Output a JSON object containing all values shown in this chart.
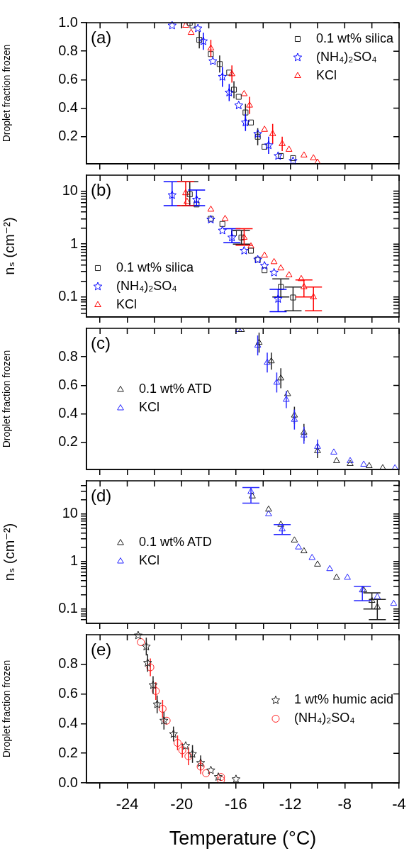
{
  "chart_data": [
    {
      "type": "scatter",
      "ylabel": "Droplet fraction frozen",
      "annotations": [
        "(a)"
      ],
      "xlim": [
        -27,
        -4
      ],
      "xticks": [
        {
          "value": -26,
          "label": null
        },
        -24,
        {
          "value": -22,
          "label": null
        },
        -20,
        {
          "value": -18,
          "label": null
        },
        -16,
        {
          "value": -14,
          "label": null
        },
        -12,
        {
          "value": -10,
          "label": null
        },
        -8,
        {
          "value": -6,
          "label": null
        },
        -4
      ],
      "ylim": [
        0.01,
        1
      ],
      "yticks": [
        0.2,
        0.4,
        0.6,
        0.8,
        {
          "value": 1,
          "label": "1.0"
        }
      ],
      "tick_labels": "y",
      "grid": false,
      "legend": "top right",
      "series": [
        {
          "name": "0.1 wt% silica",
          "color": "#202020",
          "marker": "square",
          "x": [
            -19.4,
            -19.2,
            -18.7,
            -17.85,
            -17.2,
            -16.5,
            -16.15,
            -15.8,
            -15.3,
            -14.9,
            -14.4,
            -13.9,
            -12.7,
            -11.8
          ],
          "values": [
            1.0,
            0.98,
            0.88,
            0.78,
            0.71,
            0.65,
            0.53,
            0.48,
            0.37,
            0.3,
            0.2,
            0.13,
            0.065,
            0.05
          ],
          "errors": [
            null,
            null,
            0.06,
            null,
            0.06,
            null,
            0.06,
            null,
            0.06,
            null,
            0.06,
            null,
            null,
            null
          ]
        },
        {
          "name": "(NH₄)₂SO₄",
          "color": "#0000ff",
          "marker": "star",
          "x": [
            -20.7,
            -18.8,
            -18.4,
            -17.7,
            -17.0,
            -16.5,
            -15.8,
            -15.3,
            -14.4,
            -13.6,
            -12.9,
            -11.8
          ],
          "values": [
            0.98,
            0.96,
            0.87,
            0.73,
            0.62,
            0.51,
            0.42,
            0.3,
            0.22,
            0.14,
            0.065,
            0.03
          ],
          "errors": [
            null,
            null,
            0.06,
            null,
            0.07,
            0.06,
            null,
            0.06,
            null,
            0.06,
            null,
            null
          ]
        },
        {
          "name": "KCl",
          "color": "#ff0000",
          "marker": "triangle",
          "x": [
            -19.7,
            -19.3,
            -17.85,
            -16.3,
            -15.4,
            -15.0,
            -13.9,
            -13.3,
            -12.6,
            -12.1,
            -11.0,
            -10.3,
            -10.0
          ],
          "values": [
            0.98,
            0.93,
            0.82,
            0.64,
            0.5,
            0.42,
            0.25,
            0.22,
            0.15,
            0.11,
            0.07,
            0.05,
            0.02
          ],
          "errors": [
            null,
            null,
            0.06,
            0.06,
            null,
            0.06,
            null,
            0.07,
            0.05,
            null,
            null,
            null,
            null
          ]
        }
      ]
    },
    {
      "type": "scatter",
      "ylabel": "nₛ (cm⁻²)",
      "annotations": [
        "(b)"
      ],
      "log": "y",
      "xlim": [
        -27,
        -4
      ],
      "xticks": [
        {
          "value": -26,
          "label": null
        },
        -24,
        {
          "value": -22,
          "label": null
        },
        -20,
        {
          "value": -18,
          "label": null
        },
        -16,
        {
          "value": -14,
          "label": null
        },
        -12,
        {
          "value": -10,
          "label": null
        },
        -8,
        {
          "value": -6,
          "label": null
        },
        -4
      ],
      "ylim": [
        0.042,
        20
      ],
      "yticks": [
        {
          "value": 0.05,
          "label": null
        },
        {
          "value": 0.06,
          "label": null
        },
        {
          "value": 0.07,
          "label": null
        },
        {
          "value": 0.08,
          "label": null
        },
        {
          "value": 0.09,
          "label": null
        },
        0.1,
        {
          "value": 0.2,
          "label": null
        },
        {
          "value": 0.3,
          "label": null
        },
        {
          "value": 0.4,
          "label": null
        },
        {
          "value": 0.5,
          "label": null
        },
        {
          "value": 0.6,
          "label": null
        },
        {
          "value": 0.7,
          "label": null
        },
        {
          "value": 0.8,
          "label": null
        },
        {
          "value": 0.9,
          "label": null
        },
        1,
        {
          "value": 2,
          "label": null
        },
        {
          "value": 3,
          "label": null
        },
        {
          "value": 4,
          "label": null
        },
        {
          "value": 5,
          "label": null
        },
        {
          "value": 6,
          "label": null
        },
        {
          "value": 7,
          "label": null
        },
        {
          "value": 8,
          "label": null
        },
        {
          "value": 9,
          "label": null
        },
        10
      ],
      "tick_labels": "y",
      "grid": false,
      "legend": "bottom left",
      "series": [
        {
          "name": "0.1 wt% silica",
          "color": "#202020",
          "marker": "square",
          "x": [
            -19.4,
            -18.9,
            -17.85,
            -17.0,
            -16.15,
            -15.6,
            -14.9,
            -14.4,
            -13.9,
            -12.7,
            -11.8
          ],
          "values": [
            8.7,
            5.6,
            3.0,
            2.4,
            1.6,
            1.33,
            0.75,
            0.51,
            0.32,
            0.155,
            0.098
          ],
          "errors": [
            [
              5.3,
              15
            ],
            null,
            null,
            null,
            null,
            [
              1.0,
              1.8
            ],
            null,
            null,
            null,
            [
              0.1,
              0.22
            ],
            [
              0.055,
              0.155
            ]
          ]
        },
        {
          "name": "(NH₄)₂SO₄",
          "color": "#0000ff",
          "marker": "star",
          "x": [
            -20.7,
            -18.9,
            -17.85,
            -17.0,
            -16.3,
            -15.4,
            -14.4,
            -13.9,
            -13.2,
            -12.9
          ],
          "values": [
            8.4,
            6.9,
            2.9,
            1.8,
            1.33,
            0.75,
            0.51,
            0.39,
            0.29,
            0.092
          ],
          "errors": [
            [
              5.3,
              15
            ],
            [
              5.3,
              10.5
            ],
            null,
            null,
            [
              1.06,
              1.95
            ],
            null,
            null,
            null,
            null,
            [
              0.053,
              0.14
            ]
          ]
        },
        {
          "name": "KCl",
          "color": "#ff0000",
          "marker": "triangle",
          "x": [
            -19.7,
            -19.6,
            -17.85,
            -16.8,
            -15.4,
            -14.9,
            -13.9,
            -13.2,
            -12.7,
            -12.1,
            -11.2,
            -11.0,
            -10.3
          ],
          "values": [
            9.2,
            6.3,
            4.5,
            3.0,
            1.33,
            0.91,
            0.61,
            0.46,
            0.35,
            0.26,
            0.22,
            0.155,
            0.1
          ],
          "errors": [
            [
              5.3,
              15
            ],
            null,
            null,
            null,
            [
              0.95,
              1.95
            ],
            null,
            null,
            null,
            null,
            null,
            null,
            [
              0.1,
              0.21
            ],
            [
              0.055,
              0.155
            ]
          ]
        }
      ]
    },
    {
      "type": "scatter",
      "ylabel": "Droplet fraction frozen",
      "annotations": [
        "(c)"
      ],
      "xlim": [
        -27,
        -4
      ],
      "xticks": [
        {
          "value": -26,
          "label": null
        },
        -24,
        {
          "value": -22,
          "label": null
        },
        -20,
        {
          "value": -18,
          "label": null
        },
        -16,
        {
          "value": -14,
          "label": null
        },
        -12,
        {
          "value": -10,
          "label": null
        },
        -8,
        {
          "value": -6,
          "label": null
        },
        -4
      ],
      "ylim": [
        0.01,
        1
      ],
      "yticks": [
        0.2,
        0.4,
        0.6,
        0.8
      ],
      "tick_labels": "y",
      "grid": false,
      "legend": "left",
      "series": [
        {
          "name": "0.1 wt% ATD",
          "color": "#202020",
          "marker": "triangle",
          "x": [
            -15.6,
            -14.3,
            -13.4,
            -12.7,
            -12.2,
            -11.7,
            -11.0,
            -10.0,
            -8.6,
            -7.6,
            -6.2,
            -5.2
          ],
          "values": [
            0.99,
            0.9,
            0.77,
            0.65,
            0.54,
            0.39,
            0.27,
            0.14,
            0.07,
            0.05,
            0.035,
            0.02
          ],
          "errors": [
            null,
            0.07,
            0.06,
            0.07,
            null,
            0.06,
            0.06,
            0.05,
            null,
            null,
            null,
            null
          ]
        },
        {
          "name": "KCl",
          "color": "#2828ff",
          "marker": "triangle",
          "x": [
            -15.8,
            -14.4,
            -13.7,
            -13.0,
            -12.3,
            -11.7,
            -11.0,
            -10.0,
            -8.8,
            -7.6,
            -6.6,
            -4.3
          ],
          "values": [
            0.99,
            0.88,
            0.76,
            0.62,
            0.5,
            0.36,
            0.25,
            0.17,
            0.13,
            0.07,
            0.045,
            0.02
          ],
          "errors": [
            null,
            0.07,
            0.07,
            0.07,
            0.06,
            0.07,
            0.06,
            0.05,
            null,
            null,
            null,
            null
          ]
        }
      ]
    },
    {
      "type": "scatter",
      "ylabel": "nₛ (cm⁻²)",
      "annotations": [
        "(d)"
      ],
      "log": "y",
      "xlim": [
        -27,
        -4
      ],
      "xticks": [
        {
          "value": -26,
          "label": null
        },
        -24,
        {
          "value": -22,
          "label": null
        },
        -20,
        {
          "value": -18,
          "label": null
        },
        -16,
        {
          "value": -14,
          "label": null
        },
        -12,
        {
          "value": -10,
          "label": null
        },
        -8,
        {
          "value": -6,
          "label": null
        },
        -4
      ],
      "ylim": [
        0.05,
        50
      ],
      "yticks": [
        {
          "value": 0.06,
          "label": null
        },
        {
          "value": 0.07,
          "label": null
        },
        {
          "value": 0.08,
          "label": null
        },
        {
          "value": 0.09,
          "label": null
        },
        0.1,
        {
          "value": 0.2,
          "label": null
        },
        {
          "value": 0.3,
          "label": null
        },
        {
          "value": 0.4,
          "label": null
        },
        {
          "value": 0.5,
          "label": null
        },
        {
          "value": 0.6,
          "label": null
        },
        {
          "value": 0.7,
          "label": null
        },
        {
          "value": 0.8,
          "label": null
        },
        {
          "value": 0.9,
          "label": null
        },
        1,
        {
          "value": 2,
          "label": null
        },
        {
          "value": 3,
          "label": null
        },
        {
          "value": 4,
          "label": null
        },
        {
          "value": 5,
          "label": null
        },
        {
          "value": 6,
          "label": null
        },
        {
          "value": 7,
          "label": null
        },
        {
          "value": 8,
          "label": null
        },
        {
          "value": 9,
          "label": null
        },
        10,
        {
          "value": 20,
          "label": null
        },
        {
          "value": 30,
          "label": null
        },
        {
          "value": 40,
          "label": null
        }
      ],
      "tick_labels": "y",
      "grid": false,
      "legend": "left",
      "series": [
        {
          "name": "0.1 wt% ATD",
          "color": "#202020",
          "marker": "triangle",
          "x": [
            -14.8,
            -13.6,
            -12.7,
            -11.7,
            -11.0,
            -10.0,
            -8.6,
            -6.6,
            -6.0,
            -5.6
          ],
          "values": [
            23.7,
            12.5,
            6.0,
            2.8,
            1.66,
            0.87,
            0.46,
            0.25,
            0.15,
            0.11
          ],
          "errors": [
            null,
            null,
            null,
            null,
            null,
            null,
            null,
            null,
            [
              0.1,
              0.22
            ],
            [
              0.06,
              0.16
            ]
          ]
        },
        {
          "name": "KCl",
          "color": "#2828ff",
          "marker": "triangle",
          "x": [
            -14.9,
            -13.6,
            -12.6,
            -11.4,
            -10.4,
            -9.1,
            -7.8,
            -6.7,
            -5.6,
            -4.4
          ],
          "values": [
            29.5,
            10,
            4.8,
            2.0,
            1.2,
            0.7,
            0.46,
            0.25,
            0.18,
            0.13
          ],
          "errors": [
            [
              17,
              36
            ],
            null,
            [
              3.7,
              6.0
            ],
            null,
            null,
            null,
            null,
            [
              0.15,
              0.3
            ],
            null,
            null
          ]
        }
      ]
    },
    {
      "type": "scatter",
      "ylabel": "Droplet fraction frozen",
      "xlabel": "Temperature (°C)",
      "annotations": [
        "(e)"
      ],
      "xlim": [
        -27,
        -4
      ],
      "xticks": [
        {
          "value": -26,
          "label": null
        },
        -24,
        {
          "value": -22,
          "label": null
        },
        -20,
        {
          "value": -18,
          "label": null
        },
        -16,
        {
          "value": -14,
          "label": null
        },
        -12,
        {
          "value": -10,
          "label": null
        },
        -8,
        {
          "value": -6,
          "label": null
        },
        -4
      ],
      "ylim": [
        0,
        1
      ],
      "yticks": [
        {
          "value": 0,
          "label": "0.0"
        },
        0.2,
        0.4,
        0.6,
        0.8
      ],
      "grid": false,
      "legend": "right",
      "series": [
        {
          "name": "1 wt% humic acid",
          "color": "#202020",
          "marker": "star",
          "x": [
            -23.2,
            -22.6,
            -22.5,
            -22.1,
            -21.8,
            -21.3,
            -20.6,
            -19.7,
            -19.2,
            -18.6,
            -17.85,
            -17.3,
            -16.0
          ],
          "values": [
            0.995,
            0.92,
            0.81,
            0.66,
            0.53,
            0.42,
            0.33,
            0.25,
            0.195,
            0.135,
            0.085,
            0.04,
            0.025
          ],
          "errors": [
            null,
            0.06,
            0.06,
            0.06,
            0.06,
            0.06,
            0.05,
            null,
            0.06,
            0.05,
            null,
            null,
            null
          ]
        },
        {
          "name": "(NH₄)₂SO₄",
          "color": "#ff2020",
          "marker": "circle",
          "x": [
            -23.0,
            -22.3,
            -21.9,
            -21.4,
            -21.1,
            -20.3,
            -19.95,
            -19.5,
            -18.6,
            -18.2,
            -17.1,
            -17.1
          ],
          "values": [
            0.95,
            0.78,
            0.62,
            0.5,
            0.42,
            0.27,
            0.22,
            0.18,
            0.11,
            0.065,
            0.04,
            0.02
          ],
          "errors": [
            null,
            0.06,
            0.06,
            0.06,
            null,
            0.05,
            0.05,
            0.06,
            0.05,
            null,
            null,
            null
          ]
        }
      ]
    }
  ]
}
